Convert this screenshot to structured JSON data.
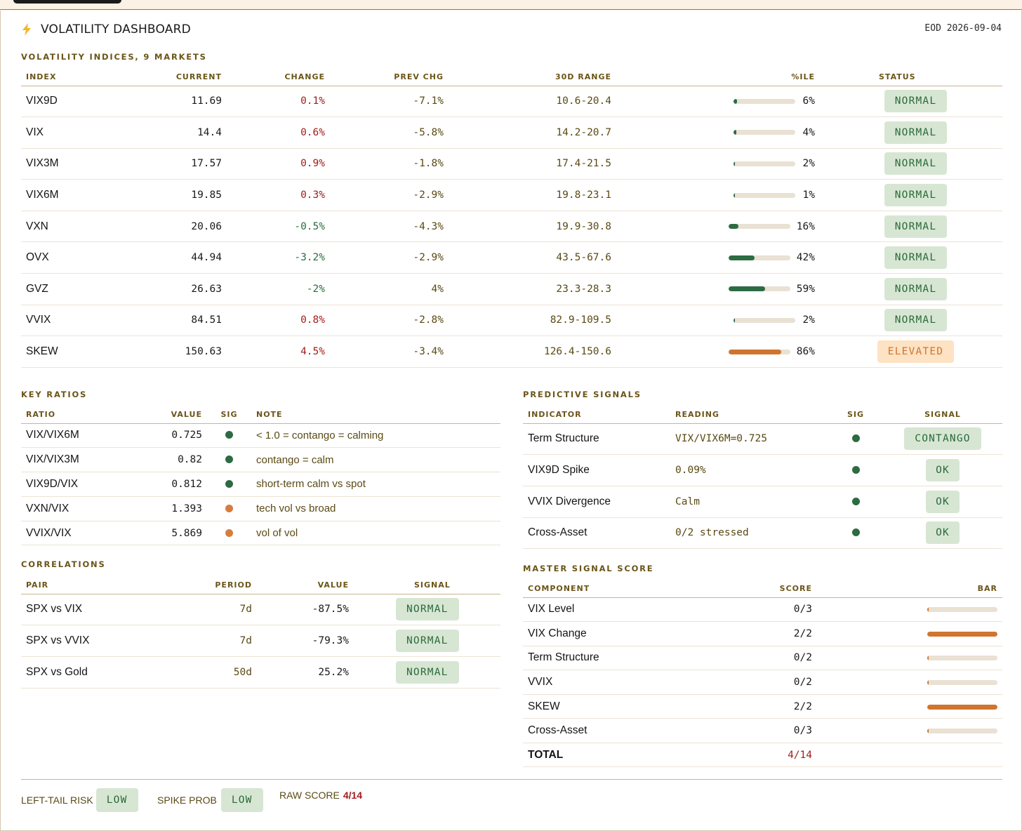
{
  "header": {
    "title": "VOLATILITY DASHBOARD",
    "eod": "EOD 2026-09-04",
    "icon": "lightning-icon"
  },
  "indices": {
    "section_title": "VOLATILITY INDICES, 9 MARKETS",
    "columns": [
      "INDEX",
      "CURRENT",
      "CHANGE",
      "PREV CHG",
      "30D RANGE",
      "%ILE",
      "STATUS"
    ],
    "rows": [
      {
        "index": "VIX9D",
        "current": "11.69",
        "change": "0.1%",
        "dir": "up",
        "prev": "-7.1%",
        "range": "10.6-20.4",
        "pct": "6%",
        "pct_value": 6,
        "status": "NORMAL"
      },
      {
        "index": "VIX",
        "current": "14.4",
        "change": "0.6%",
        "dir": "up",
        "prev": "-5.8%",
        "range": "14.2-20.7",
        "pct": "4%",
        "pct_value": 4,
        "status": "NORMAL"
      },
      {
        "index": "VIX3M",
        "current": "17.57",
        "change": "0.9%",
        "dir": "up",
        "prev": "-1.8%",
        "range": "17.4-21.5",
        "pct": "2%",
        "pct_value": 2,
        "status": "NORMAL"
      },
      {
        "index": "VIX6M",
        "current": "19.85",
        "change": "0.3%",
        "dir": "up",
        "prev": "-2.9%",
        "range": "19.8-23.1",
        "pct": "1%",
        "pct_value": 1,
        "status": "NORMAL"
      },
      {
        "index": "VXN",
        "current": "20.06",
        "change": "-0.5%",
        "dir": "down",
        "prev": "-4.3%",
        "range": "19.9-30.8",
        "pct": "16%",
        "pct_value": 16,
        "status": "NORMAL"
      },
      {
        "index": "OVX",
        "current": "44.94",
        "change": "-3.2%",
        "dir": "down",
        "prev": "-2.9%",
        "range": "43.5-67.6",
        "pct": "42%",
        "pct_value": 42,
        "status": "NORMAL"
      },
      {
        "index": "GVZ",
        "current": "26.63",
        "change": "-2%",
        "dir": "down",
        "prev": "4%",
        "range": "23.3-28.3",
        "pct": "59%",
        "pct_value": 59,
        "status": "NORMAL"
      },
      {
        "index": "VVIX",
        "current": "84.51",
        "change": "0.8%",
        "dir": "up",
        "prev": "-2.8%",
        "range": "82.9-109.5",
        "pct": "2%",
        "pct_value": 2,
        "status": "NORMAL"
      },
      {
        "index": "SKEW",
        "current": "150.63",
        "change": "4.5%",
        "dir": "up",
        "prev": "-3.4%",
        "range": "126.4-150.6",
        "pct": "86%",
        "pct_value": 86,
        "status": "ELEVATED"
      }
    ]
  },
  "ratios": {
    "section_title": "KEY RATIOS",
    "columns": [
      "RATIO",
      "VALUE",
      "SIG",
      "NOTE"
    ],
    "rows": [
      {
        "ratio": "VIX/VIX6M",
        "value": "0.725",
        "sig": "green",
        "note": "< 1.0 = contango = calming"
      },
      {
        "ratio": "VIX/VIX3M",
        "value": "0.82",
        "sig": "green",
        "note": "contango = calm"
      },
      {
        "ratio": "VIX9D/VIX",
        "value": "0.812",
        "sig": "green",
        "note": "short-term calm vs spot"
      },
      {
        "ratio": "VXN/VIX",
        "value": "1.393",
        "sig": "orange",
        "note": "tech vol vs broad"
      },
      {
        "ratio": "VVIX/VIX",
        "value": "5.869",
        "sig": "orange",
        "note": "vol of vol"
      }
    ]
  },
  "correlations": {
    "section_title": "CORRELATIONS",
    "columns": [
      "PAIR",
      "PERIOD",
      "VALUE",
      "SIGNAL"
    ],
    "rows": [
      {
        "pair": "SPX vs VIX",
        "period": "7d",
        "value": "-87.5%",
        "signal": "NORMAL"
      },
      {
        "pair": "SPX vs VVIX",
        "period": "7d",
        "value": "-79.3%",
        "signal": "NORMAL"
      },
      {
        "pair": "SPX vs Gold",
        "period": "50d",
        "value": "25.2%",
        "signal": "NORMAL"
      }
    ]
  },
  "signals": {
    "section_title": "PREDICTIVE SIGNALS",
    "columns": [
      "INDICATOR",
      "READING",
      "SIG",
      "SIGNAL"
    ],
    "rows": [
      {
        "indicator": "Term Structure",
        "reading": "VIX/VIX6M=0.725",
        "sig": "green",
        "signal": "CONTANGO"
      },
      {
        "indicator": "VIX9D Spike",
        "reading": "0.09%",
        "sig": "green",
        "signal": "OK"
      },
      {
        "indicator": "VVIX Divergence",
        "reading": "Calm",
        "sig": "green",
        "signal": "OK"
      },
      {
        "indicator": "Cross-Asset",
        "reading": "0/2 stressed",
        "sig": "green",
        "signal": "OK"
      }
    ]
  },
  "master": {
    "section_title": "MASTER SIGNAL SCORE",
    "columns": [
      "COMPONENT",
      "SCORE",
      "BAR"
    ],
    "rows": [
      {
        "component": "VIX Level",
        "score": "0/3",
        "fraction": 0
      },
      {
        "component": "VIX Change",
        "score": "2/2",
        "fraction": 1
      },
      {
        "component": "Term Structure",
        "score": "0/2",
        "fraction": 0
      },
      {
        "component": "VVIX",
        "score": "0/2",
        "fraction": 0
      },
      {
        "component": "SKEW",
        "score": "2/2",
        "fraction": 1
      },
      {
        "component": "Cross-Asset",
        "score": "0/3",
        "fraction": 0
      }
    ],
    "total_label": "TOTAL",
    "total_score": "4/14"
  },
  "footer": {
    "left_tail_label": "LEFT-TAIL RISK",
    "left_tail_value": "LOW",
    "spike_label": "SPIKE PROB",
    "spike_value": "LOW",
    "raw_label": "RAW SCORE",
    "raw_value": "4/14"
  },
  "colors": {
    "bar_green": "#2d6b43",
    "bar_orange": "#d0752f",
    "dot_green": "#2d6b43",
    "dot_orange": "#d67d3e",
    "accent_red": "#a31d1d"
  }
}
